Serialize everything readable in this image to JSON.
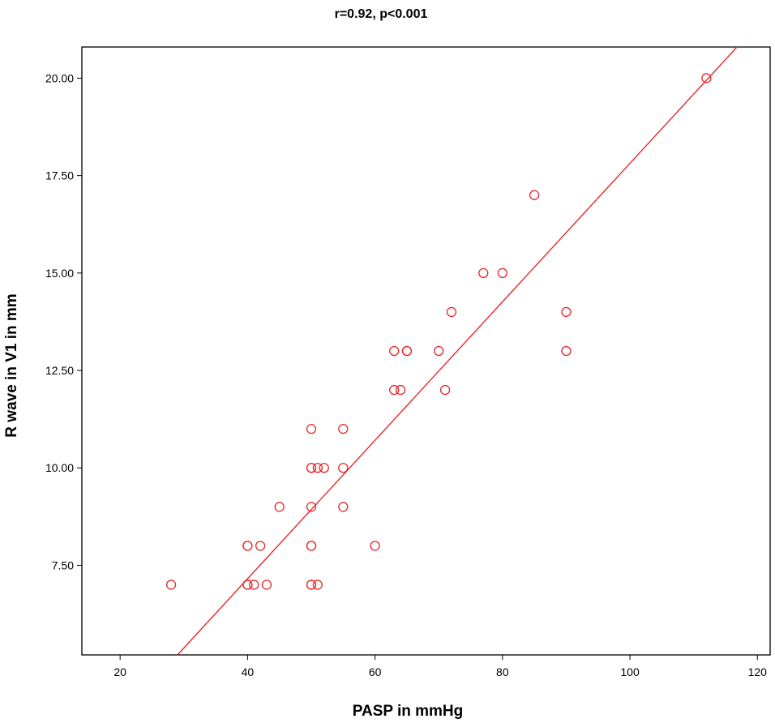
{
  "chart_data": {
    "type": "scatter",
    "title": "r=0.92, p<0.001",
    "xlabel": "PASP in mmHg",
    "ylabel": "R wave in V1 in mm",
    "xlim": [
      14,
      122
    ],
    "ylim": [
      5.2,
      20.8
    ],
    "xticks": [
      20,
      40,
      60,
      80,
      100,
      120
    ],
    "xtick_labels": [
      "20",
      "40",
      "60",
      "80",
      "100",
      "120"
    ],
    "yticks": [
      7.5,
      10,
      12.5,
      15,
      17.5,
      20
    ],
    "ytick_labels": [
      "7.50",
      "10.00",
      "12.50",
      "15.00",
      "17.50",
      "20.00"
    ],
    "grid": false,
    "marker_color": "#e8262a",
    "line_color": "#e8262a",
    "points": [
      {
        "x": 28,
        "y": 7
      },
      {
        "x": 40,
        "y": 7
      },
      {
        "x": 40,
        "y": 8
      },
      {
        "x": 40,
        "y": 8
      },
      {
        "x": 40,
        "y": 7
      },
      {
        "x": 41,
        "y": 7
      },
      {
        "x": 42,
        "y": 8
      },
      {
        "x": 43,
        "y": 7
      },
      {
        "x": 45,
        "y": 9
      },
      {
        "x": 50,
        "y": 11
      },
      {
        "x": 50,
        "y": 10
      },
      {
        "x": 50,
        "y": 10
      },
      {
        "x": 50,
        "y": 9
      },
      {
        "x": 50,
        "y": 8
      },
      {
        "x": 50,
        "y": 8
      },
      {
        "x": 50,
        "y": 7
      },
      {
        "x": 50,
        "y": 7
      },
      {
        "x": 51,
        "y": 10
      },
      {
        "x": 51,
        "y": 7
      },
      {
        "x": 52,
        "y": 10
      },
      {
        "x": 55,
        "y": 11
      },
      {
        "x": 55,
        "y": 10
      },
      {
        "x": 55,
        "y": 9
      },
      {
        "x": 60,
        "y": 8
      },
      {
        "x": 63,
        "y": 13
      },
      {
        "x": 63,
        "y": 12
      },
      {
        "x": 64,
        "y": 12
      },
      {
        "x": 65,
        "y": 13
      },
      {
        "x": 65,
        "y": 13
      },
      {
        "x": 70,
        "y": 13
      },
      {
        "x": 71,
        "y": 12
      },
      {
        "x": 72,
        "y": 14
      },
      {
        "x": 77,
        "y": 15
      },
      {
        "x": 80,
        "y": 15
      },
      {
        "x": 85,
        "y": 17
      },
      {
        "x": 90,
        "y": 14
      },
      {
        "x": 90,
        "y": 13
      },
      {
        "x": 112,
        "y": 20
      }
    ],
    "fit_line": {
      "x": [
        29,
        116.8
      ],
      "y": [
        5.2,
        20.8
      ]
    }
  }
}
